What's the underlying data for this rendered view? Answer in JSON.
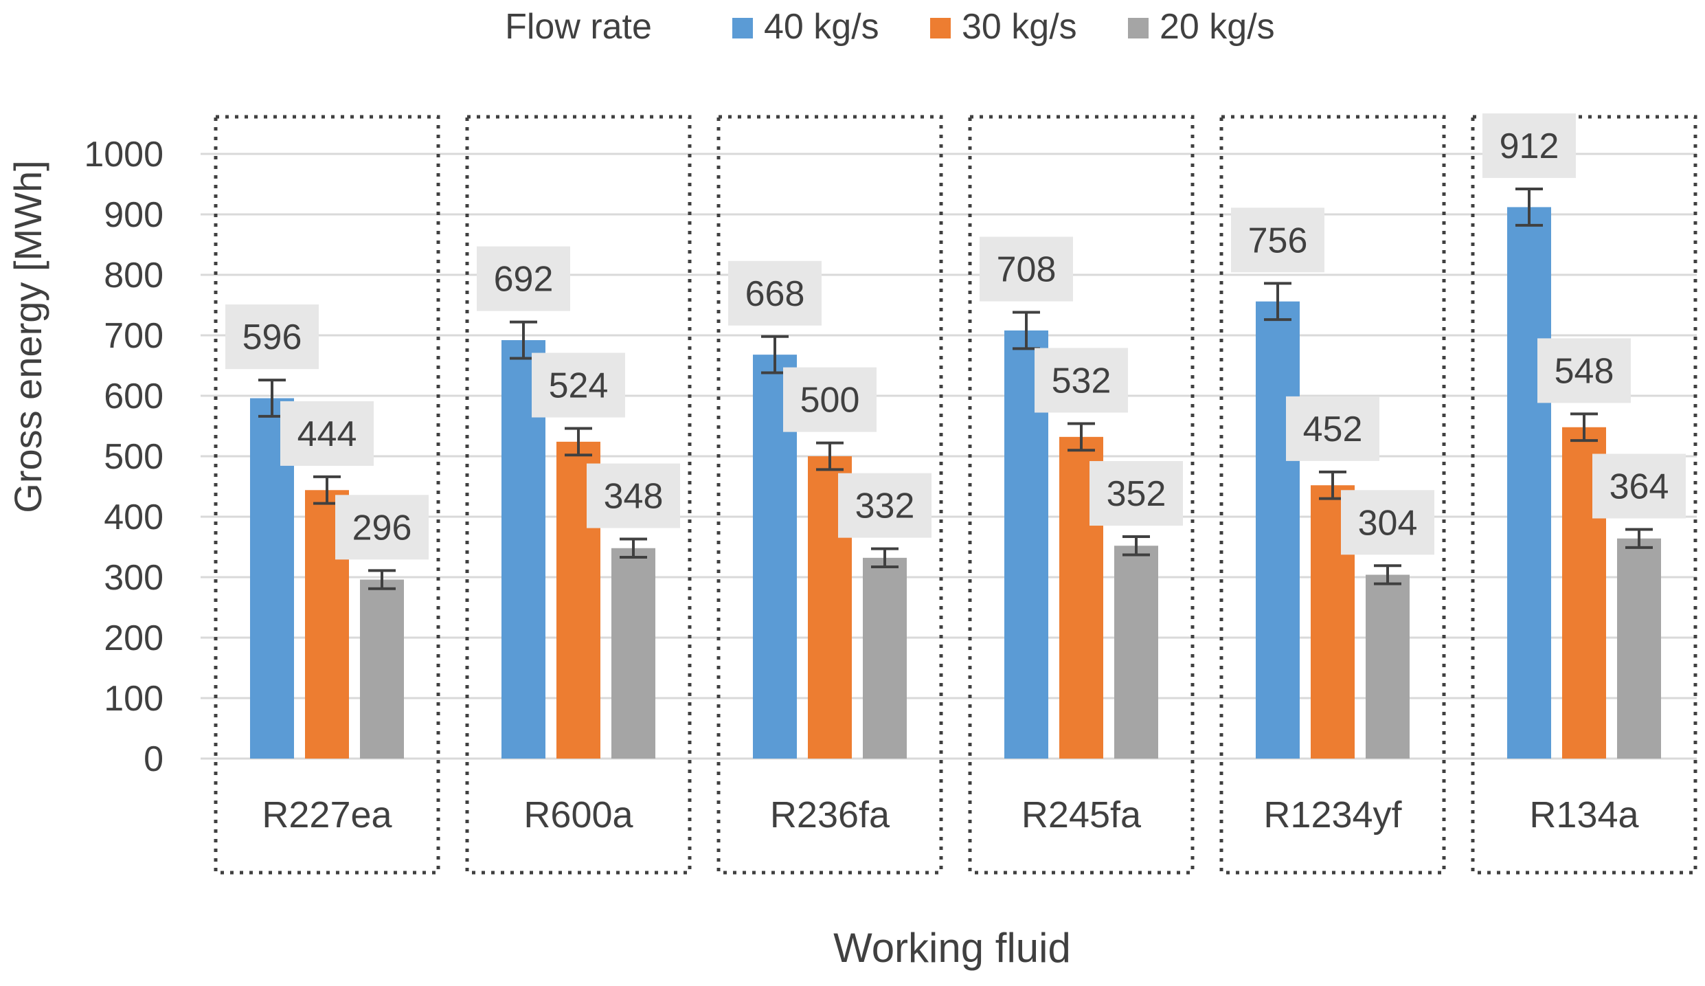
{
  "chart_data": {
    "type": "bar",
    "title": "",
    "legend": {
      "title": "Flow rate",
      "placement": "top-center"
    },
    "xlabel": "Working fluid",
    "ylabel": "Gross energy [MWh]",
    "ylim": [
      0,
      1000
    ],
    "yticks": [
      0,
      100,
      200,
      300,
      400,
      500,
      600,
      700,
      800,
      900,
      1000
    ],
    "ytick_labels": [
      "0",
      "100",
      "200",
      "300",
      "400",
      "500",
      "600",
      "700",
      "800",
      "900",
      "1000"
    ],
    "grid": true,
    "categories": [
      "R227ea",
      "R600a",
      "R236fa",
      "R245fa",
      "R1234yf",
      "R134a"
    ],
    "series": [
      {
        "name": "40 kg/s",
        "color": "#5B9BD5",
        "values": [
          596,
          692,
          668,
          708,
          756,
          912
        ],
        "labels": [
          "596",
          "692",
          "668",
          "708",
          "756",
          "912"
        ],
        "error": [
          30,
          30,
          30,
          30,
          30,
          30
        ]
      },
      {
        "name": "30 kg/s",
        "color": "#ED7D31",
        "values": [
          444,
          524,
          500,
          532,
          452,
          548
        ],
        "labels": [
          "444",
          "524",
          "500",
          "532",
          "452",
          "548"
        ],
        "error": [
          22,
          22,
          22,
          22,
          22,
          22
        ]
      },
      {
        "name": "20 kg/s",
        "color": "#A5A5A5",
        "values": [
          296,
          348,
          332,
          352,
          304,
          364
        ],
        "labels": [
          "296",
          "348",
          "332",
          "352",
          "304",
          "364"
        ],
        "error": [
          15,
          15,
          15,
          15,
          15,
          15
        ]
      }
    ],
    "colors": {
      "text": "#404040",
      "grid": "#D9D9D9",
      "label_box": "#E7E7E7",
      "error_bar": "#404040",
      "group_border": "#404040"
    }
  }
}
